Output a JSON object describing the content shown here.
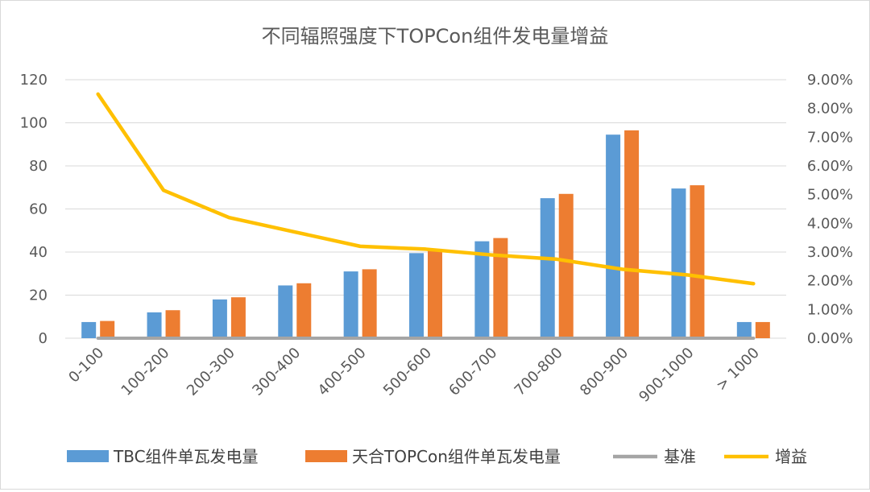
{
  "chart_data": {
    "type": "bar",
    "title": "不同辐照强度下TOPCon组件发电量增益",
    "categories": [
      "0-100",
      "100-200",
      "200-300",
      "300-400",
      "400-500",
      "500-600",
      "600-700",
      "700-800",
      "800-900",
      "900-1000",
      "> 1000"
    ],
    "ylim": [
      0,
      120
    ],
    "yticks": [
      "0",
      "20",
      "40",
      "60",
      "80",
      "100",
      "120"
    ],
    "y2lim": [
      0,
      0.09
    ],
    "y2ticks": [
      "0.00%",
      "1.00%",
      "2.00%",
      "3.00%",
      "4.00%",
      "5.00%",
      "6.00%",
      "7.00%",
      "8.00%",
      "9.00%"
    ],
    "grid": true,
    "legend_position": "bottom",
    "series": [
      {
        "name": "TBC组件单瓦发电量",
        "type": "bar",
        "axis": "left",
        "color": "#5B9BD5",
        "values": [
          7.5,
          12,
          18,
          24.5,
          31,
          39.5,
          45,
          65,
          94.5,
          69.5,
          7.5
        ]
      },
      {
        "name": "天合TOPCon组件单瓦发电量",
        "type": "bar",
        "axis": "left",
        "color": "#ED7D31",
        "values": [
          8,
          13,
          19,
          25.5,
          32,
          41.5,
          46.5,
          67,
          96.5,
          71,
          7.5
        ]
      },
      {
        "name": "基准",
        "type": "line",
        "axis": "left",
        "color": "#A5A5A5",
        "values": [
          0,
          0,
          0,
          0,
          0,
          0,
          0,
          0,
          0,
          0,
          0
        ]
      },
      {
        "name": "增益",
        "type": "line",
        "axis": "right",
        "color": "#FFC000",
        "values": [
          0.085,
          0.0515,
          0.042,
          0.037,
          0.032,
          0.031,
          0.029,
          0.0275,
          0.024,
          0.022,
          0.019
        ]
      }
    ]
  }
}
